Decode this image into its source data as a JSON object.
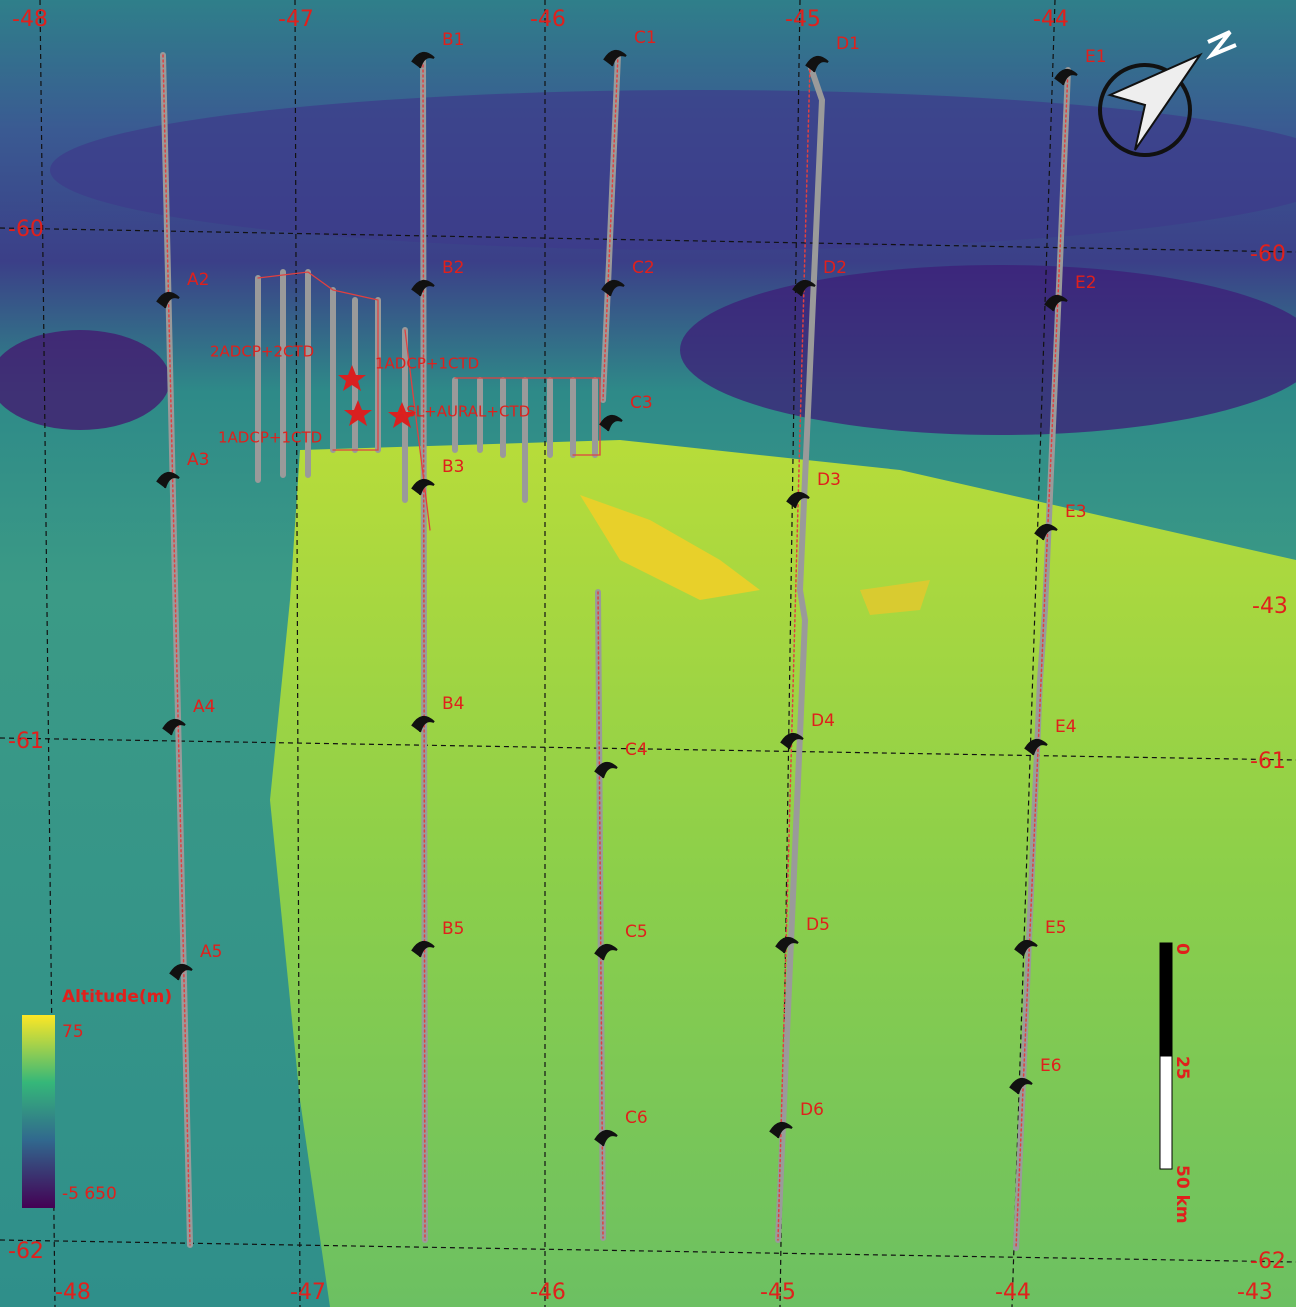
{
  "map": {
    "lon_labels_top": [
      "-48",
      "-47",
      "-46",
      "-45",
      "-44"
    ],
    "lon_labels_bottom": [
      "-48",
      "-47",
      "-46",
      "-45",
      "-44",
      "-43"
    ],
    "lat_labels_left": [
      "-60",
      "-61",
      "-62"
    ],
    "lat_labels_right": [
      "-60",
      "-43",
      "-61",
      "-62"
    ],
    "stations": [
      "A2",
      "A3",
      "A4",
      "A5",
      "B1",
      "B2",
      "B3",
      "B4",
      "B5",
      "C1",
      "C2",
      "C3",
      "C4",
      "C5",
      "C6",
      "D1",
      "D2",
      "D3",
      "D4",
      "D5",
      "D6",
      "E1",
      "E2",
      "E3",
      "E4",
      "E5",
      "E6"
    ],
    "annotations": [
      "2ADCP+2CTD",
      "1ADCP+1CTD",
      "1ADCP+1CTD",
      "ASL+AURAL+CTD"
    ],
    "legend": {
      "title": "Altitude(m)",
      "max": "75",
      "min": "-5 650"
    },
    "scale_bar": {
      "labels": [
        "0",
        "25",
        "50 km"
      ]
    }
  }
}
